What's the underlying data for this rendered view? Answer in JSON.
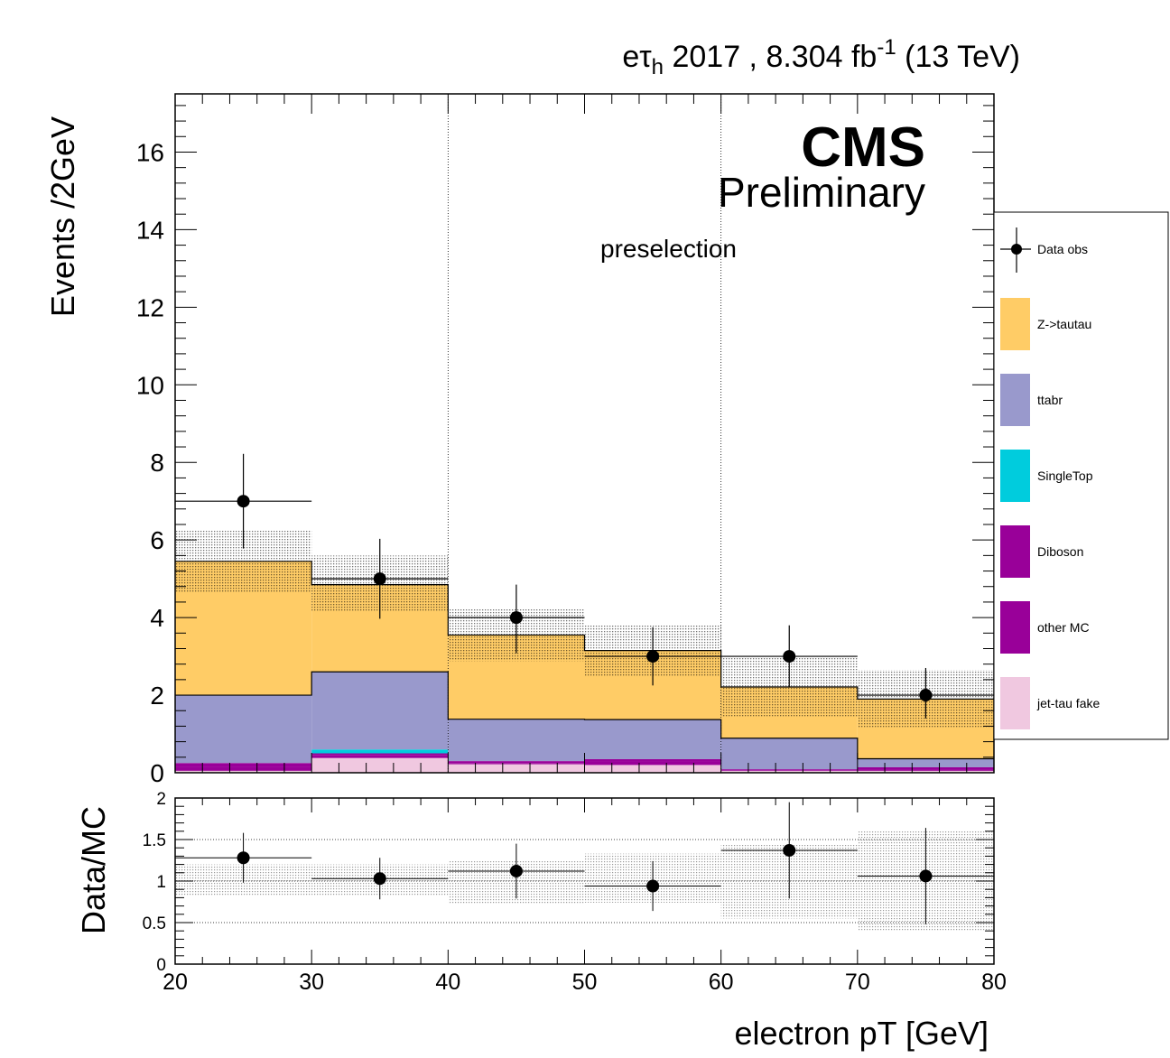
{
  "header": {
    "channel_main": "eτ",
    "channel_sub": "h",
    "lumi_text": " 2017 , 8.304 fb",
    "lumi_sup": "-1",
    "energy_text": " (13 TeV)"
  },
  "cms_label": "CMS",
  "preliminary_label": "Preliminary",
  "region_label": "preselection",
  "colors": {
    "ztautau": "#ffcc66",
    "ttbar": "#9999cc",
    "singletop": "#00ccdd",
    "diboson": "#990099",
    "othermc": "#990099",
    "jetfake": "#f0c8e0"
  },
  "chart_data": [
    {
      "type": "bar",
      "stacked": true,
      "ylabel": "Events /2GeV",
      "xlim": [
        20,
        80
      ],
      "ylim": [
        0,
        17.5
      ],
      "yticks": [
        0,
        2,
        4,
        6,
        8,
        10,
        12,
        14,
        16
      ],
      "bin_edges": [
        20,
        30,
        40,
        50,
        60,
        70,
        80
      ],
      "series": [
        {
          "name": "jet-tau fake",
          "key": "jetfake",
          "values": [
            0.05,
            0.38,
            0.22,
            0.2,
            0.05,
            0.05
          ]
        },
        {
          "name": "other MC",
          "key": "othermc",
          "values": [
            0.1,
            0.08,
            0.03,
            0.08,
            0.01,
            0.03
          ]
        },
        {
          "name": "Diboson",
          "key": "diboson",
          "values": [
            0.1,
            0.04,
            0.05,
            0.07,
            0.03,
            0.06
          ]
        },
        {
          "name": "SingleTop",
          "key": "singletop",
          "values": [
            0.0,
            0.1,
            0.0,
            0.0,
            0.0,
            0.0
          ]
        },
        {
          "name": "ttabr",
          "key": "ttbar",
          "values": [
            1.75,
            2.0,
            1.08,
            1.02,
            0.8,
            0.22
          ]
        },
        {
          "name": "Z->tautau",
          "key": "ztautau",
          "values": [
            3.45,
            2.25,
            2.17,
            1.78,
            1.32,
            1.54
          ]
        }
      ],
      "mc_total": [
        5.45,
        4.85,
        3.55,
        3.15,
        2.2,
        1.9
      ],
      "mc_unc_band": {
        "stack_low": [
          4.65,
          4.15,
          2.88,
          2.5,
          1.45,
          1.15
        ],
        "stack_high": [
          6.25,
          5.6,
          4.22,
          3.8,
          2.97,
          2.65
        ]
      },
      "data_obs": {
        "name": "Data obs",
        "x": [
          25,
          35,
          45,
          55,
          65,
          75
        ],
        "y": [
          7,
          5,
          4,
          3,
          3,
          2
        ],
        "err_low": [
          1.22,
          1.03,
          0.92,
          0.75,
          0.8,
          0.6
        ],
        "err_high": [
          1.22,
          1.03,
          0.85,
          0.75,
          0.8,
          0.7
        ]
      }
    },
    {
      "type": "scatter",
      "ylabel": "Data/MC",
      "xlabel": "electron pT [GeV]",
      "xlim": [
        20,
        80
      ],
      "ylim": [
        0,
        2
      ],
      "yticks": [
        0,
        0.5,
        1,
        1.5,
        2
      ],
      "ytick_labels": [
        "0",
        "0.5",
        "1",
        "1.5",
        "2"
      ],
      "xticks": [
        20,
        30,
        40,
        50,
        60,
        70,
        80
      ],
      "xtick_labels": [
        "20",
        "30",
        "40",
        "50",
        "60",
        "70",
        "80"
      ],
      "ratio": {
        "x": [
          25,
          35,
          45,
          55,
          65,
          75
        ],
        "y": [
          1.28,
          1.03,
          1.12,
          0.94,
          1.37,
          1.06
        ],
        "err": [
          0.3,
          0.25,
          0.33,
          0.3,
          0.58,
          0.58
        ]
      },
      "unc_band": {
        "low": [
          0.82,
          0.82,
          0.73,
          0.74,
          0.55,
          0.4
        ],
        "high": [
          1.2,
          1.2,
          1.25,
          1.33,
          1.45,
          1.6
        ]
      }
    }
  ]
}
